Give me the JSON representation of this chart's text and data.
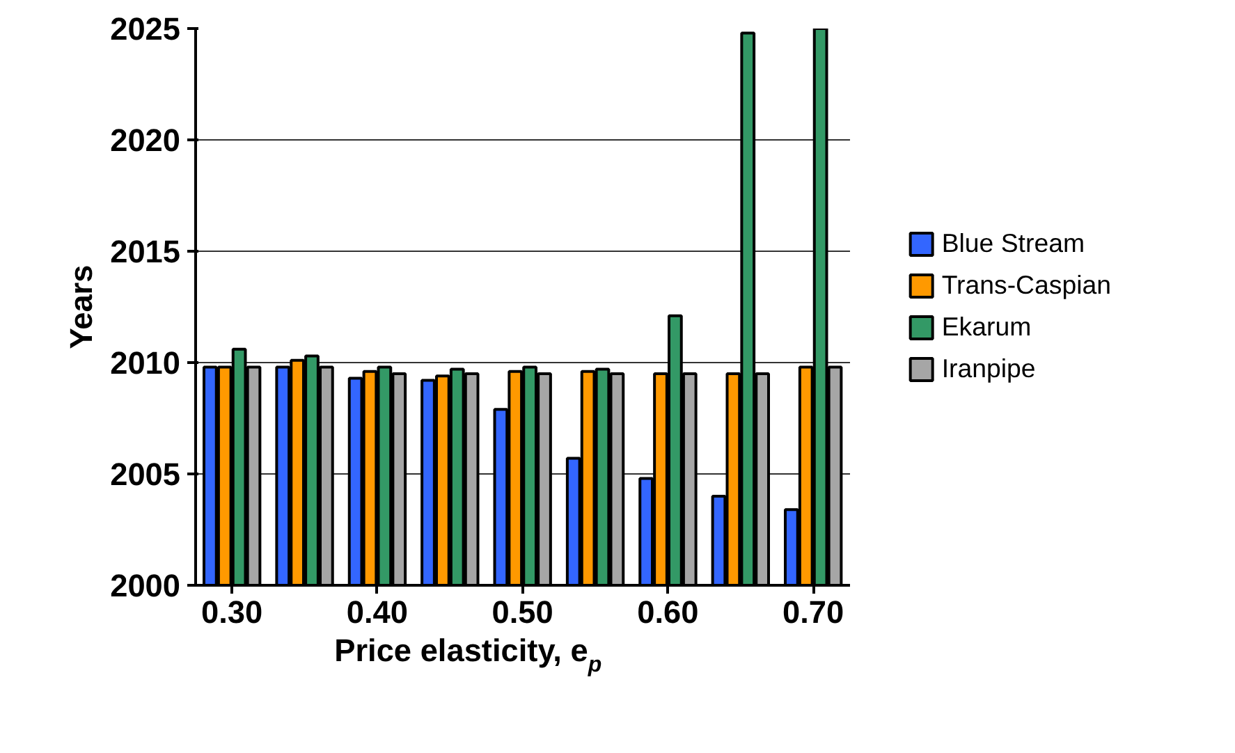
{
  "chart_data": {
    "type": "bar",
    "xlabel": "Price elasticity, e$_{p}$",
    "ylabel": "Years",
    "categories": [
      "0.30",
      null,
      "0.40",
      null,
      "0.50",
      null,
      "0.60",
      null,
      "0.70"
    ],
    "series": [
      {
        "name": "Blue Stream",
        "color": "#3366ff",
        "values": [
          2009.8,
          2009.8,
          2009.3,
          2009.2,
          2007.9,
          2005.7,
          2004.8,
          2004.0,
          2003.4
        ]
      },
      {
        "name": "Trans-Caspian",
        "color": "#ff9900",
        "values": [
          2009.8,
          2010.1,
          2009.6,
          2009.4,
          2009.6,
          2009.6,
          2009.5,
          2009.5,
          2009.8
        ]
      },
      {
        "name": "Ekarum",
        "color": "#339966",
        "values": [
          2010.6,
          2010.3,
          2009.8,
          2009.7,
          2009.8,
          2009.7,
          2012.1,
          2024.8,
          2025.0
        ]
      },
      {
        "name": "Iranpipe",
        "color": "#a6a6a6",
        "values": [
          2009.8,
          2009.8,
          2009.5,
          2009.5,
          2009.5,
          2009.5,
          2009.5,
          2009.5,
          2009.8
        ]
      }
    ],
    "ylim": [
      2000,
      2025
    ],
    "yticks": [
      2000,
      2005,
      2010,
      2015,
      2020,
      2025
    ],
    "grid": "y",
    "legend": "right"
  }
}
